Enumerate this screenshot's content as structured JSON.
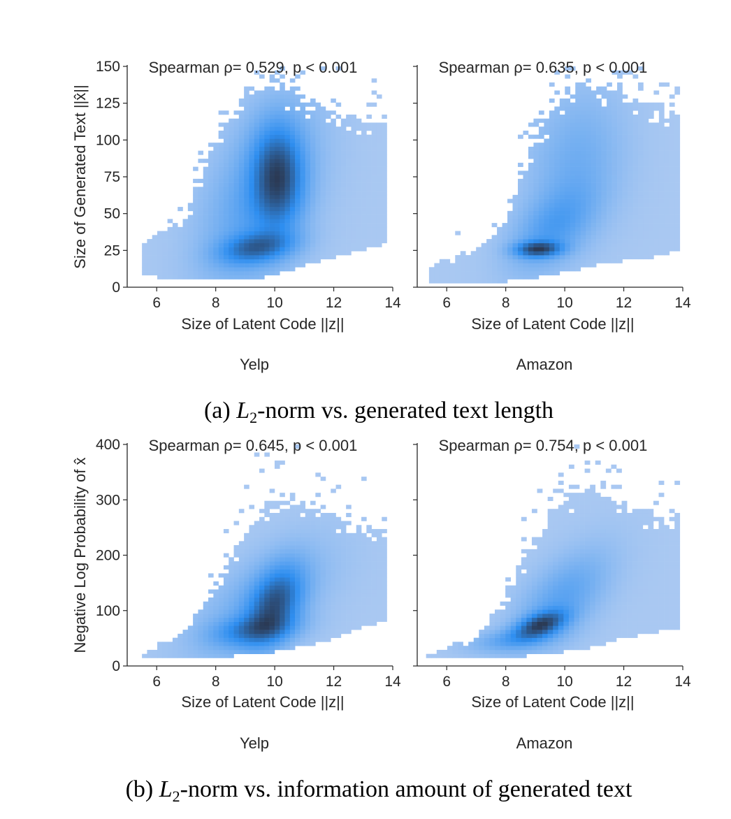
{
  "figure": {
    "caption_a": {
      "label": "(a) ",
      "math": "L",
      "sub": "2",
      "rest": "-norm vs. generated text length"
    },
    "caption_b": {
      "label": "(b) ",
      "math": "L",
      "sub": "2",
      "rest": "-norm vs. information amount of generated text"
    }
  },
  "colors": {
    "low": "#a9c8f2",
    "mid": "#2e8ef0",
    "high": "#2b3a55",
    "axis": "#262626"
  },
  "chart_data": [
    {
      "type": "heatmap",
      "panel": "Yelp",
      "row": "a",
      "annotation": "Spearman ρ= 0.529, p < 0.001",
      "xlabel": "Size of Latent Code ||z||",
      "ylabel": "Size of Generated Text ||x̂||",
      "xlim": [
        5,
        14
      ],
      "ylim": [
        0,
        150
      ],
      "xticks": [
        6,
        8,
        10,
        12,
        14
      ],
      "yticks": [
        0,
        25,
        50,
        75,
        100,
        125,
        150
      ],
      "footer": "Yelp",
      "xrange": [
        5.5,
        13.8
      ],
      "clusters": [
        {
          "x": 10.1,
          "y": 75,
          "sx": 0.55,
          "sy": 22,
          "rho": 0.0,
          "w": 0.7
        },
        {
          "x": 9.4,
          "y": 27,
          "sx": 0.8,
          "sy": 7,
          "rho": 0.3,
          "w": 0.55
        },
        {
          "x": 9.5,
          "y": 60,
          "sx": 1.2,
          "sy": 38,
          "rho": 0.45,
          "w": 0.25
        }
      ],
      "bounds": [
        [
          5.5,
          8,
          28
        ],
        [
          7,
          5,
          48
        ],
        [
          8,
          5,
          100
        ],
        [
          9,
          5,
          130
        ],
        [
          10,
          8,
          138
        ],
        [
          11,
          15,
          130
        ],
        [
          12,
          20,
          120
        ],
        [
          13,
          25,
          115
        ],
        [
          13.8,
          30,
          110
        ]
      ]
    },
    {
      "type": "heatmap",
      "panel": "Amazon",
      "row": "a",
      "annotation": "Spearman ρ= 0.635, p < 0.001",
      "xlabel": "Size of Latent Code ||z||",
      "ylabel": "",
      "xlim": [
        5,
        14
      ],
      "ylim": [
        0,
        150
      ],
      "xticks": [
        6,
        8,
        10,
        12,
        14
      ],
      "yticks": [],
      "footer": "Amazon",
      "xrange": [
        5.4,
        13.9
      ],
      "clusters": [
        {
          "x": 9.1,
          "y": 26,
          "sx": 0.5,
          "sy": 3.5,
          "rho": 0.1,
          "w": 1.0
        },
        {
          "x": 9.6,
          "y": 40,
          "sx": 0.9,
          "sy": 18,
          "rho": 0.5,
          "w": 0.35
        },
        {
          "x": 10.4,
          "y": 85,
          "sx": 1.0,
          "sy": 30,
          "rho": 0.2,
          "w": 0.2
        }
      ],
      "bounds": [
        [
          5.4,
          4,
          14
        ],
        [
          7,
          4,
          25
        ],
        [
          8,
          4,
          45
        ],
        [
          9,
          6,
          100
        ],
        [
          10,
          10,
          135
        ],
        [
          11,
          15,
          138
        ],
        [
          12,
          18,
          132
        ],
        [
          13,
          20,
          125
        ],
        [
          13.9,
          25,
          118
        ]
      ]
    },
    {
      "type": "heatmap",
      "panel": "Yelp",
      "row": "b",
      "annotation": "Spearman ρ= 0.645, p < 0.001",
      "xlabel": "Size of Latent Code ||z||",
      "ylabel": "Negative Log Probability of x̂",
      "xlim": [
        5,
        14
      ],
      "ylim": [
        0,
        400
      ],
      "xticks": [
        6,
        8,
        10,
        12,
        14
      ],
      "yticks": [
        0,
        100,
        200,
        300,
        400
      ],
      "footer": "Yelp",
      "xrange": [
        5.5,
        13.8
      ],
      "clusters": [
        {
          "x": 10.0,
          "y": 110,
          "sx": 0.6,
          "sy": 45,
          "rho": 0.4,
          "w": 0.8
        },
        {
          "x": 9.3,
          "y": 65,
          "sx": 0.9,
          "sy": 18,
          "rho": 0.3,
          "w": 0.5
        },
        {
          "x": 9.5,
          "y": 110,
          "sx": 1.4,
          "sy": 65,
          "rho": 0.6,
          "w": 0.2
        }
      ],
      "bounds": [
        [
          5.5,
          12,
          24
        ],
        [
          7,
          12,
          60
        ],
        [
          8,
          15,
          150
        ],
        [
          9,
          20,
          240
        ],
        [
          10,
          25,
          300
        ],
        [
          11,
          35,
          290
        ],
        [
          12,
          50,
          270
        ],
        [
          13,
          70,
          250
        ],
        [
          13.8,
          80,
          240
        ]
      ]
    },
    {
      "type": "heatmap",
      "panel": "Amazon",
      "row": "b",
      "annotation": "Spearman ρ= 0.754, p < 0.001",
      "xlabel": "Size of Latent Code ||z||",
      "ylabel": "",
      "xlim": [
        5,
        14
      ],
      "ylim": [
        0,
        400
      ],
      "xticks": [
        6,
        8,
        10,
        12,
        14
      ],
      "yticks": [],
      "footer": "Amazon",
      "xrange": [
        5.3,
        13.9
      ],
      "clusters": [
        {
          "x": 9.2,
          "y": 75,
          "sx": 0.55,
          "sy": 16,
          "rho": 0.5,
          "w": 1.0
        },
        {
          "x": 9.9,
          "y": 120,
          "sx": 1.0,
          "sy": 55,
          "rho": 0.6,
          "w": 0.3
        },
        {
          "x": 8.3,
          "y": 48,
          "sx": 0.9,
          "sy": 14,
          "rho": 0.4,
          "w": 0.3
        }
      ],
      "bounds": [
        [
          5.3,
          12,
          20
        ],
        [
          7,
          12,
          50
        ],
        [
          8,
          15,
          120
        ],
        [
          9,
          20,
          230
        ],
        [
          10,
          25,
          310
        ],
        [
          11,
          35,
          320
        ],
        [
          12,
          50,
          290
        ],
        [
          13,
          60,
          270
        ],
        [
          13.9,
          70,
          260
        ]
      ]
    }
  ]
}
